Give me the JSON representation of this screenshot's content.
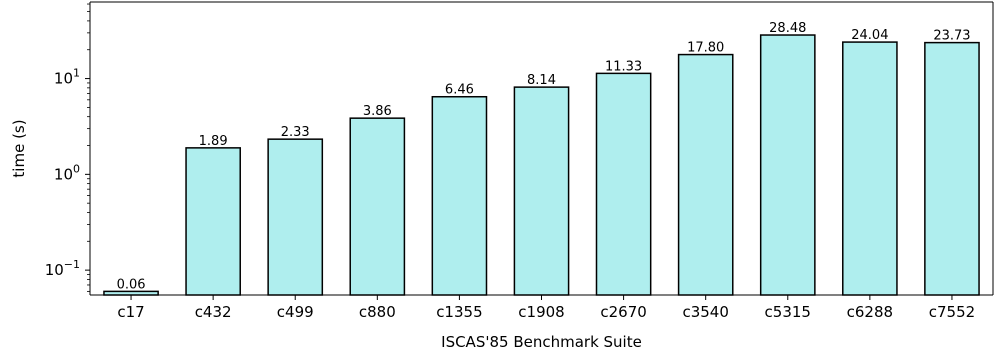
{
  "chart_data": {
    "type": "bar",
    "scale": "log",
    "categories": [
      "c17",
      "c432",
      "c499",
      "c880",
      "c1355",
      "c1908",
      "c2670",
      "c3540",
      "c5315",
      "c6288",
      "c7552"
    ],
    "values": [
      0.06,
      1.89,
      2.33,
      3.86,
      6.46,
      8.14,
      11.33,
      17.8,
      28.48,
      24.04,
      23.73
    ],
    "value_labels": [
      "0.06",
      "1.89",
      "2.33",
      "3.86",
      "6.46",
      "8.14",
      "11.33",
      "17.80",
      "28.48",
      "24.04",
      "23.73"
    ],
    "xlabel": "ISCAS'85 Benchmark Suite",
    "ylabel": "time (s)",
    "ylim": [
      0.055,
      63
    ],
    "y_ticks": [
      {
        "value": 0.1,
        "base": "10",
        "exp": "−1"
      },
      {
        "value": 1,
        "base": "10",
        "exp": "0"
      },
      {
        "value": 10,
        "base": "10",
        "exp": "1"
      }
    ],
    "bar_color": "#afeeee",
    "edge_color": "#000000",
    "grid": false,
    "legend": false
  }
}
